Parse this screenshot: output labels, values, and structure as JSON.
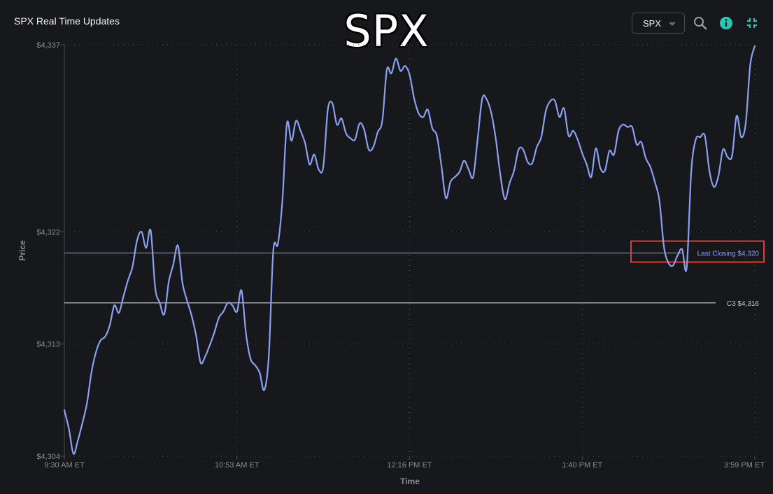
{
  "header": {
    "app_title": "SPX Real Time Updates",
    "big_title": "SPX",
    "symbol_select": {
      "selected": "SPX"
    },
    "icons": {
      "search": "search-icon",
      "info": "info-icon",
      "collapse": "collapse-icon"
    }
  },
  "colors": {
    "background": "#17181c",
    "price_line": "#8aa0f0",
    "last_close_line": "#8aa0f0",
    "c3_line": "#e6e6e6",
    "grid": "#4a4c54",
    "info_icon": "#26c6b0",
    "collapse_icon": "#26c6b0",
    "highlight_box": "#e53935"
  },
  "chart_data": {
    "type": "line",
    "xlabel": "Time",
    "ylabel": "Price",
    "ylim": [
      4304,
      4337
    ],
    "y_ticks": [
      {
        "value": 4337,
        "label": "$4,337"
      },
      {
        "value": 4322,
        "label": "$4,322"
      },
      {
        "value": 4313,
        "label": "$4,313"
      },
      {
        "value": 4304,
        "label": "$4,304"
      }
    ],
    "x_ticks": [
      "9:30 AM ET",
      "10:53 AM ET",
      "12:16 PM ET",
      "1:40 PM ET",
      "3:59 PM ET"
    ],
    "grid": true,
    "reference_lines": [
      {
        "value": 4320.3,
        "label": "Last Closing $4,320",
        "highlighted": true
      },
      {
        "value": 4316.3,
        "label": "C3 $4,316",
        "highlighted": false
      }
    ],
    "series": [
      {
        "values": [
          4307.7,
          4306.2,
          4304.2,
          4305.3,
          4306.7,
          4308.3,
          4310.8,
          4312.4,
          4313.3,
          4313.6,
          4314.5,
          4316.1,
          4315.5,
          4316.8,
          4318.1,
          4319.2,
          4321.3,
          4322.0,
          4320.7,
          4322.1,
          4317.5,
          4316.3,
          4315.4,
          4318.0,
          4319.4,
          4320.9,
          4317.9,
          4316.5,
          4315.3,
          4313.7,
          4311.5,
          4312.0,
          4312.9,
          4313.9,
          4315.1,
          4315.6,
          4316.3,
          4316.1,
          4315.6,
          4317.3,
          4313.8,
          4311.8,
          4311.3,
          4310.7,
          4309.3,
          4312.0,
          4320.5,
          4321.0,
          4324.5,
          4330.7,
          4329.3,
          4330.9,
          4330.1,
          4329.1,
          4327.4,
          4328.2,
          4327.0,
          4327.2,
          4331.8,
          4332.3,
          4330.6,
          4331.1,
          4329.9,
          4329.5,
          4329.4,
          4330.7,
          4330.2,
          4328.6,
          4328.8,
          4330.0,
          4330.9,
          4335.0,
          4334.7,
          4335.9,
          4334.9,
          4335.3,
          4334.6,
          4332.7,
          4331.5,
          4331.2,
          4331.8,
          4330.3,
          4329.7,
          4327.3,
          4324.7,
          4326.0,
          4326.4,
          4326.8,
          4327.7,
          4327.0,
          4326.4,
          4329.5,
          4332.7,
          4332.6,
          4331.5,
          4329.4,
          4326.5,
          4324.6,
          4325.9,
          4326.9,
          4328.6,
          4328.6,
          4327.6,
          4327.5,
          4328.8,
          4329.6,
          4331.7,
          4332.5,
          4332.5,
          4331.2,
          4331.9,
          4329.7,
          4330.1,
          4329.4,
          4328.3,
          4327.4,
          4326.4,
          4328.7,
          4327.1,
          4326.9,
          4328.5,
          4328.2,
          4330.1,
          4330.6,
          4330.4,
          4330.4,
          4329.0,
          4329.2,
          4327.9,
          4327.2,
          4326.0,
          4324.5,
          4320.8,
          4319.5,
          4319.3,
          4320.1,
          4320.6,
          4319.1,
          4326.8,
          4329.4,
          4329.6,
          4329.7,
          4326.9,
          4325.6,
          4326.5,
          4328.6,
          4328.0,
          4328.1,
          4331.3,
          4329.6,
          4330.7,
          4335.4,
          4336.9
        ]
      }
    ]
  }
}
